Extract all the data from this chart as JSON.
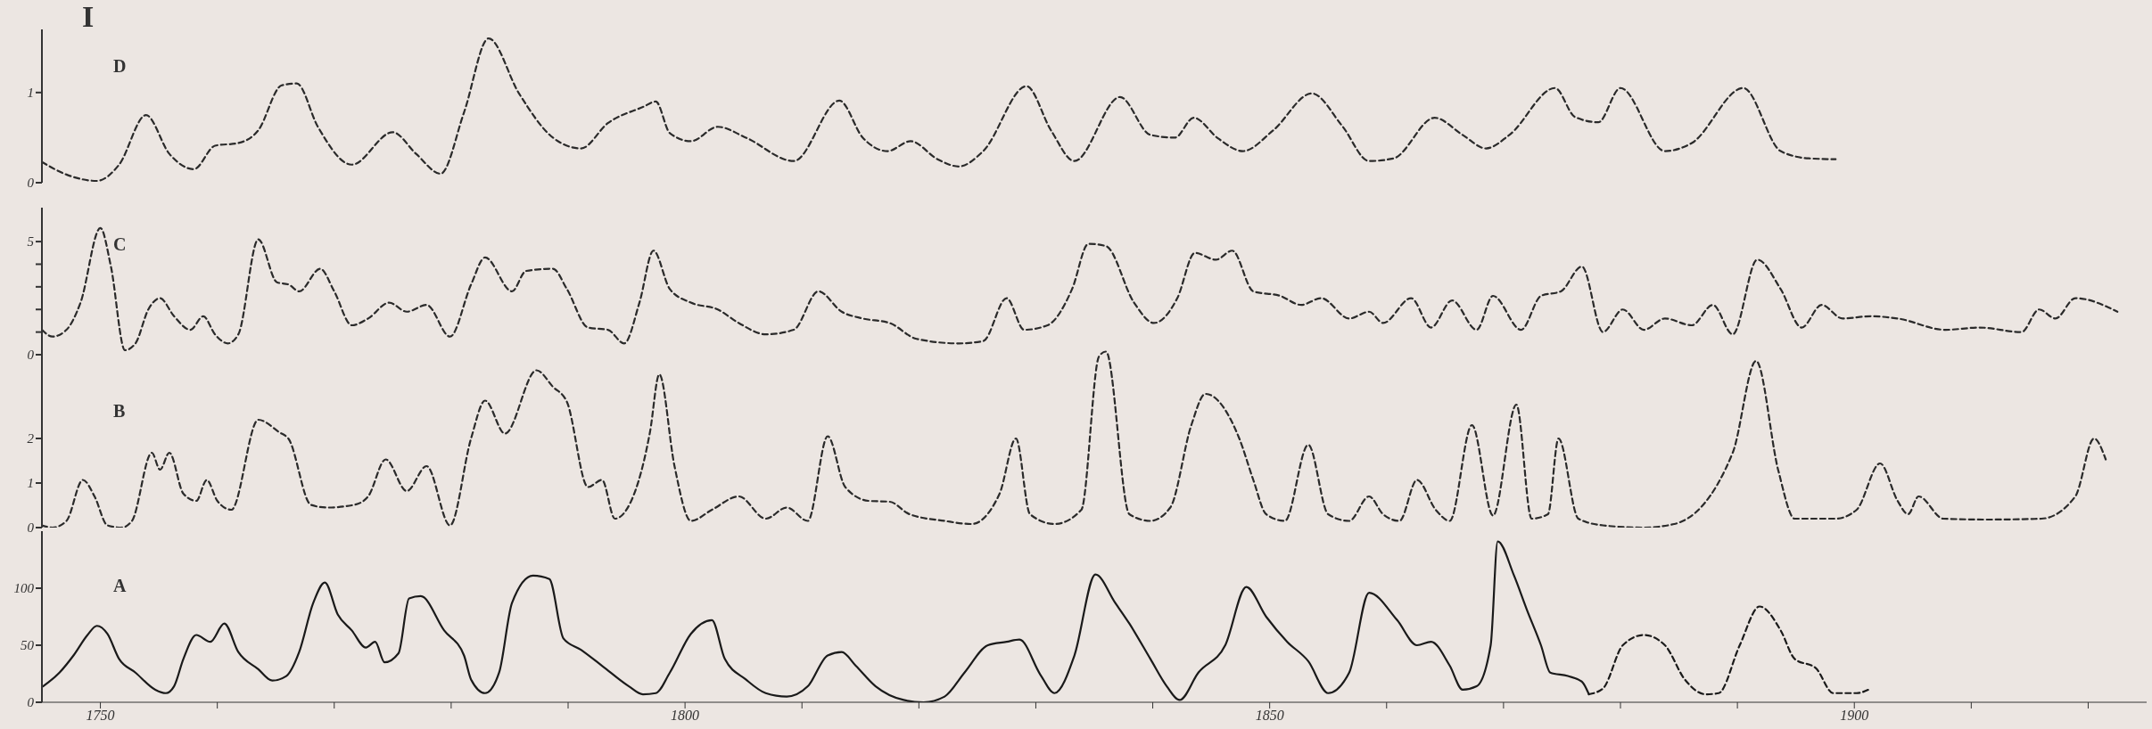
{
  "chart_data": [
    {
      "type": "line",
      "title": "I",
      "annotations": [
        "D"
      ],
      "xlim": [
        1745,
        1925
      ],
      "ylim": [
        0,
        1.7
      ],
      "yticks": [
        0,
        1
      ],
      "tick_labels": "y",
      "grid": false,
      "legend": false,
      "marker": "none",
      "series": [
        {
          "color": "#2a2a2a",
          "line_style": "dashed",
          "x": [
            1745,
            1747.1,
            1749.7,
            1751.6,
            1753.9,
            1755.9,
            1758,
            1759.8,
            1761.8,
            1763.5,
            1765.5,
            1766.8,
            1768.6,
            1771.5,
            1775,
            1777,
            1779.1,
            1781.1,
            1783.2,
            1785.8,
            1788.7,
            1791.1,
            1793.4,
            1796.4,
            1797.5,
            1798.7,
            1800.5,
            1802.8,
            1805.2,
            1809.3,
            1813.2,
            1815.2,
            1817.3,
            1819.3,
            1821.6,
            1823.4,
            1825.5,
            1829.2,
            1831.3,
            1833.3,
            1837.2,
            1839.8,
            1841.9,
            1843.5,
            1845.6,
            1847.7,
            1850.3,
            1853.6,
            1856.2,
            1858.5,
            1860.6,
            1864.1,
            1866.5,
            1868.5,
            1870.5,
            1874.4,
            1876.1,
            1878.1,
            1880,
            1883.8,
            1886.1,
            1890.5,
            1893.7,
            1896.1,
            1898.4
          ],
          "values": [
            0.23,
            0.09,
            0.02,
            0.2,
            0.75,
            0.32,
            0.15,
            0.41,
            0.44,
            0.58,
            1.08,
            1.1,
            0.62,
            0.2,
            0.56,
            0.32,
            0.1,
            0.78,
            1.6,
            0.99,
            0.5,
            0.38,
            0.66,
            0.84,
            0.9,
            0.55,
            0.46,
            0.62,
            0.5,
            0.24,
            0.91,
            0.5,
            0.35,
            0.46,
            0.26,
            0.18,
            0.35,
            1.07,
            0.58,
            0.24,
            0.95,
            0.53,
            0.5,
            0.72,
            0.49,
            0.35,
            0.58,
            0.99,
            0.63,
            0.24,
            0.27,
            0.72,
            0.53,
            0.38,
            0.53,
            1.05,
            0.73,
            0.67,
            1.05,
            0.35,
            0.44,
            1.05,
            0.35,
            0.27,
            0.26
          ]
        }
      ]
    },
    {
      "type": "line",
      "annotations": [
        "C"
      ],
      "xlim": [
        1745,
        1925
      ],
      "ylim": [
        0,
        6.5
      ],
      "yticks": [
        0,
        {
          "value": 1,
          "label": null
        },
        {
          "value": 2,
          "label": null
        },
        {
          "value": 3,
          "label": null
        },
        {
          "value": 4,
          "label": null
        },
        5
      ],
      "tick_labels": "y",
      "grid": false,
      "legend": false,
      "marker": "none",
      "series": [
        {
          "color": "#2a2a2a",
          "line_style": "dashed",
          "x": [
            1745,
            1745.9,
            1747.1,
            1748.3,
            1750,
            1750.9,
            1752.1,
            1753,
            1754.1,
            1755.1,
            1756.3,
            1757.7,
            1758.8,
            1759.8,
            1760.9,
            1761.8,
            1763.5,
            1765.1,
            1766.1,
            1767,
            1768.8,
            1770,
            1771.5,
            1772.9,
            1774.7,
            1776.2,
            1777.9,
            1779.9,
            1781.7,
            1782.9,
            1785.2,
            1786.4,
            1788.7,
            1789.9,
            1791.7,
            1793.4,
            1794.8,
            1796.1,
            1797.3,
            1798.7,
            1800.5,
            1802.8,
            1804.6,
            1806.9,
            1809.3,
            1811.4,
            1813.4,
            1815.2,
            1817.5,
            1819.8,
            1823.4,
            1825.5,
            1827.5,
            1829,
            1831,
            1833.1,
            1834.5,
            1836,
            1838.4,
            1840.1,
            1842.1,
            1843.6,
            1845.4,
            1846.8,
            1848.6,
            1850.9,
            1852.7,
            1854.4,
            1856.8,
            1858.5,
            1859.7,
            1862.1,
            1863.8,
            1865.6,
            1867.7,
            1869.1,
            1871.5,
            1873.2,
            1874.9,
            1876.7,
            1878.5,
            1880.2,
            1882,
            1883.8,
            1886.1,
            1887.9,
            1889.6,
            1891.7,
            1893.7,
            1895.5,
            1897.2,
            1899,
            1901.4,
            1903.7,
            1907.8,
            1910.7,
            1914.3,
            1915.8,
            1917.2,
            1918.9,
            1922.5
          ],
          "values": [
            1.1,
            0.8,
            1.1,
            2.3,
            5.6,
            3.9,
            0.2,
            0.5,
            2,
            2.5,
            1.7,
            1.1,
            1.7,
            0.9,
            0.5,
            0.9,
            5.1,
            3.2,
            3.1,
            2.8,
            3.8,
            2.8,
            1.3,
            1.6,
            2.3,
            1.9,
            2.2,
            0.8,
            3.1,
            4.3,
            2.8,
            3.7,
            3.8,
            2.9,
            1.2,
            1.1,
            0.5,
            2.3,
            4.6,
            2.9,
            2.3,
            2,
            1.4,
            0.9,
            1.1,
            2.8,
            1.9,
            1.6,
            1.4,
            0.7,
            0.5,
            0.6,
            2.5,
            1.1,
            1.3,
            2.9,
            4.9,
            4.8,
            2.3,
            1.4,
            2.5,
            4.5,
            4.2,
            4.6,
            2.8,
            2.6,
            2.2,
            2.5,
            1.6,
            1.9,
            1.4,
            2.5,
            1.2,
            2.4,
            1.1,
            2.6,
            1.1,
            2.6,
            2.8,
            3.9,
            1,
            2,
            1.1,
            1.6,
            1.3,
            2.2,
            0.9,
            4.2,
            2.9,
            1.2,
            2.2,
            1.6,
            1.7,
            1.6,
            1.1,
            1.2,
            1,
            2,
            1.6,
            2.5,
            1.9
          ]
        }
      ]
    },
    {
      "type": "line",
      "annotations": [
        "B"
      ],
      "xlim": [
        1745,
        1925
      ],
      "ylim": [
        0,
        4
      ],
      "yticks": [
        0,
        1,
        2
      ],
      "tick_labels": "y",
      "grid": false,
      "legend": false,
      "marker": "none",
      "series": [
        {
          "color": "#2a2a2a",
          "line_style": "dashed",
          "x": [
            1745,
            1745.9,
            1747.1,
            1748.5,
            1749.5,
            1750.6,
            1751.8,
            1752.7,
            1754.4,
            1755.1,
            1755.9,
            1757.1,
            1758.2,
            1759.1,
            1760,
            1761.2,
            1763.5,
            1765.3,
            1766.1,
            1768,
            1769.4,
            1771.7,
            1772.9,
            1774.4,
            1776.2,
            1777.9,
            1779.9,
            1781.7,
            1782.9,
            1784.6,
            1787.3,
            1788.7,
            1789.9,
            1791.7,
            1792.9,
            1794,
            1795.4,
            1797,
            1797.8,
            1799.1,
            1800.5,
            1802.3,
            1804.6,
            1806.9,
            1808.7,
            1810.5,
            1812.2,
            1813.7,
            1815.7,
            1817.5,
            1819.2,
            1822.2,
            1824.5,
            1826.9,
            1828.3,
            1829.5,
            1831.6,
            1833.9,
            1835.4,
            1836,
            1838,
            1839.8,
            1841.5,
            1843.3,
            1844.5,
            1847.4,
            1848.6,
            1849.7,
            1851.3,
            1853.3,
            1855,
            1856.8,
            1858.5,
            1859.7,
            1861.1,
            1862.6,
            1864.2,
            1865.4,
            1867.3,
            1869.1,
            1871.1,
            1872.4,
            1873.8,
            1874.7,
            1876.4,
            1878.5,
            1882,
            1884.6,
            1889.6,
            1891.6,
            1893.5,
            1894.9,
            1898.4,
            1900.2,
            1902.2,
            1903.7,
            1904.6,
            1905.5,
            1907.6,
            1911.3,
            1916,
            1918.9,
            1920.5,
            1921.5
          ],
          "values": [
            0.05,
            0,
            0.15,
            1.07,
            0.7,
            0.05,
            0,
            0.15,
            1.68,
            1.3,
            1.68,
            0.76,
            0.6,
            1.07,
            0.6,
            0.4,
            2.42,
            2.14,
            1.99,
            0.51,
            0.45,
            0.51,
            0.7,
            1.53,
            0.82,
            1.38,
            0.05,
            2,
            2.85,
            2.11,
            3.53,
            3.16,
            2.82,
            0.91,
            1.07,
            0.2,
            0.6,
            2.14,
            3.44,
            1.38,
            0.15,
            0.4,
            0.7,
            0.2,
            0.45,
            0.15,
            2.05,
            0.91,
            0.6,
            0.58,
            0.3,
            0.15,
            0.08,
            0.76,
            2,
            0.3,
            0.08,
            0.4,
            3.84,
            3.95,
            0.3,
            0.15,
            0.45,
            2.3,
            3,
            2,
            1.07,
            0.3,
            0.15,
            1.86,
            0.3,
            0.15,
            0.7,
            0.3,
            0.15,
            1.07,
            0.4,
            0.15,
            2.3,
            0.27,
            2.76,
            0.2,
            0.3,
            2,
            0.2,
            0.05,
            0,
            0.08,
            1.68,
            3.74,
            1.28,
            0.2,
            0.2,
            0.4,
            1.44,
            0.6,
            0.3,
            0.7,
            0.2,
            0.18,
            0.2,
            0.7,
            2,
            1.53
          ]
        }
      ]
    },
    {
      "type": "line",
      "annotations": [
        "A"
      ],
      "xlim": [
        1745,
        1925
      ],
      "ylim": [
        0,
        150
      ],
      "yticks": [
        0,
        50,
        100
      ],
      "xticks": [
        {
          "value": 1750,
          "label": "1750"
        },
        {
          "value": 1760,
          "label": null
        },
        {
          "value": 1770,
          "label": null
        },
        {
          "value": 1780,
          "label": null
        },
        {
          "value": 1790,
          "label": null
        },
        {
          "value": 1800,
          "label": "1800"
        },
        {
          "value": 1810,
          "label": null
        },
        {
          "value": 1820,
          "label": null
        },
        {
          "value": 1830,
          "label": null
        },
        {
          "value": 1840,
          "label": null
        },
        {
          "value": 1850,
          "label": "1850"
        },
        {
          "value": 1860,
          "label": null
        },
        {
          "value": 1870,
          "label": null
        },
        {
          "value": 1880,
          "label": null
        },
        {
          "value": 1890,
          "label": null
        },
        {
          "value": 1900,
          "label": "1900"
        },
        {
          "value": 1910,
          "label": null
        },
        {
          "value": 1920,
          "label": null
        }
      ],
      "grid": false,
      "legend": false,
      "marker": "none",
      "series": [
        {
          "color": "#1a1a1a",
          "line_style": "solid",
          "x": [
            1745.1,
            1746.5,
            1747.7,
            1748.9,
            1749.7,
            1750.6,
            1751.6,
            1753,
            1754.7,
            1755.6,
            1756.3,
            1757.1,
            1758.2,
            1759.4,
            1760.6,
            1761.8,
            1763.5,
            1764.7,
            1765.9,
            1767,
            1768.2,
            1769.2,
            1770.3,
            1771.5,
            1772.7,
            1773.5,
            1774.3,
            1775.5,
            1776.4,
            1777.4,
            1779.4,
            1781.1,
            1781.7,
            1782.9,
            1784.1,
            1785.2,
            1787,
            1788.4,
            1789.6,
            1791.1,
            1792.9,
            1795.2,
            1796.4,
            1797.5,
            1798.7,
            1800.5,
            1802.3,
            1803.4,
            1805.2,
            1806.9,
            1808.7,
            1810.5,
            1812.2,
            1813.4,
            1814.6,
            1816.3,
            1818.7,
            1820.4,
            1822.2,
            1823.9,
            1825.9,
            1827.5,
            1828.6,
            1830.4,
            1831.6,
            1833.3,
            1835.1,
            1836.8,
            1838,
            1839.8,
            1841.2,
            1842.3,
            1843.9,
            1846.2,
            1848,
            1849.7,
            1851.5,
            1853.3,
            1855,
            1856.8,
            1858.5,
            1860.9,
            1862.6,
            1863.8,
            1865.4,
            1866.5,
            1867.7,
            1868.9,
            1869.5,
            1870.9,
            1872,
            1873.2,
            1874,
            1875.5,
            1876.7,
            1877.3
          ],
          "values": [
            14,
            26,
            41,
            59,
            67,
            60,
            38,
            26,
            11,
            8,
            14,
            38,
            59,
            53,
            69,
            44,
            29,
            19,
            23,
            44,
            87,
            105,
            77,
            63,
            48,
            53,
            35,
            43,
            91,
            93,
            63,
            41,
            20,
            8,
            26,
            87,
            111,
            108,
            56,
            46,
            32,
            14,
            7,
            8,
            26,
            60,
            72,
            38,
            20,
            8,
            5,
            14,
            41,
            44,
            32,
            14,
            2,
            0,
            5,
            26,
            50,
            53,
            55,
            24,
            8,
            41,
            112,
            87,
            69,
            38,
            14,
            2,
            26,
            50,
            101,
            75,
            53,
            36,
            8,
            26,
            96,
            72,
            50,
            53,
            32,
            11,
            14,
            50,
            141,
            111,
            81,
            50,
            26,
            23,
            18,
            7
          ]
        },
        {
          "color": "#1a1a1a",
          "line_style": "dashed",
          "x": [
            1877.3,
            1878.5,
            1880.2,
            1882,
            1883.8,
            1885.5,
            1887.3,
            1888.4,
            1890.2,
            1891.9,
            1893.7,
            1894.9,
            1896.7,
            1898.2,
            1900.2,
            1901.4
          ],
          "values": [
            7,
            12,
            50,
            59,
            50,
            20,
            7,
            8,
            50,
            84,
            63,
            38,
            30,
            8,
            8,
            12
          ]
        }
      ]
    }
  ]
}
